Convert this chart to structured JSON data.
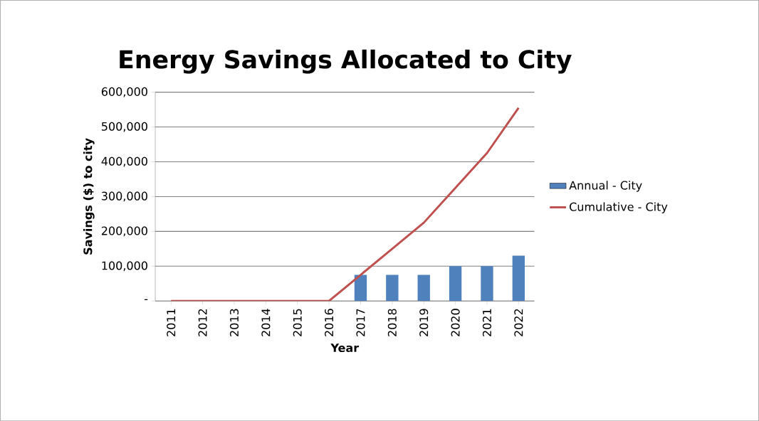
{
  "chart_data": {
    "type": "bar",
    "title": "Energy Savings Allocated to City",
    "xlabel": "Year",
    "ylabel": "Savings ($) to city",
    "categories": [
      "2011",
      "2012",
      "2013",
      "2014",
      "2015",
      "2016",
      "2017",
      "2018",
      "2019",
      "2020",
      "2021",
      "2022"
    ],
    "series": [
      {
        "name": "Annual - City",
        "color": "#4f81bd",
        "values": [
          0,
          0,
          0,
          0,
          0,
          0,
          75000,
          75000,
          75000,
          100000,
          100000,
          130000
        ]
      },
      {
        "name": "Cumulative - City",
        "type": "line",
        "color": "#c0504d",
        "values": [
          0,
          0,
          0,
          0,
          0,
          0,
          75000,
          150000,
          225000,
          325000,
          425000,
          555000
        ]
      }
    ],
    "ylim": [
      0,
      600000
    ],
    "yticks": [
      {
        "value": 0,
        "label": "-"
      },
      {
        "value": 100000,
        "label": "100,000"
      },
      {
        "value": 200000,
        "label": "200,000"
      },
      {
        "value": 300000,
        "label": "300,000"
      },
      {
        "value": 400000,
        "label": "400,000"
      },
      {
        "value": 500000,
        "label": "500,000"
      },
      {
        "value": 600000,
        "label": "600,000"
      }
    ],
    "grid": "y",
    "legend": "right",
    "marker": "none"
  }
}
